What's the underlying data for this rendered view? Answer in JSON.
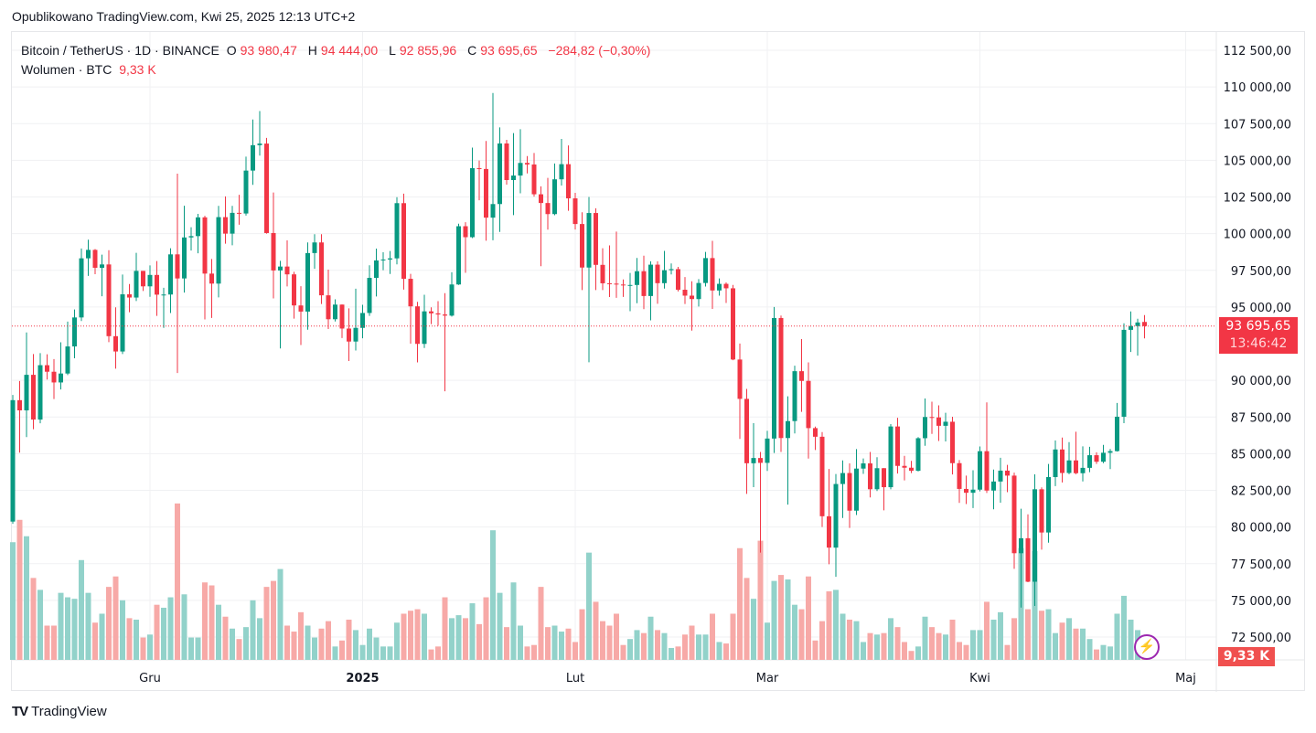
{
  "published": "Opublikowano TradingView.com, Kwi 25, 2025 12:13 UTC+2",
  "legend": {
    "symbol": "Bitcoin / TetherUS · 1D · BINANCE",
    "o_label": "O",
    "o": "93 980,47",
    "h_label": "H",
    "h": "94 444,00",
    "l_label": "L",
    "l": "92 855,96",
    "c_label": "C",
    "c": "93 695,65",
    "change": "−284,82 (−0,30%)",
    "volume_label": "Wolumen · BTC",
    "volume": "9,33 K"
  },
  "price_tag": {
    "price": "93 695,65",
    "countdown": "13:46:42"
  },
  "volume_tag": "9,33 K",
  "logo": {
    "text": "TradingView",
    "mark": "TV"
  },
  "colors": {
    "up": "#089981",
    "down": "#f23645",
    "up_vol": "#92d2ca",
    "down_vol": "#f7a9a7",
    "grid": "#f0f1f3"
  },
  "chart_data": {
    "type": "candlestick",
    "title": "Bitcoin / TetherUS · 1D · BINANCE",
    "ylim": [
      71250,
      113750
    ],
    "y_ticks": [
      {
        "value": 112500,
        "label": "112 500,00"
      },
      {
        "value": 110000,
        "label": "110 000,00"
      },
      {
        "value": 107500,
        "label": "107 500,00"
      },
      {
        "value": 105000,
        "label": "105 000,00"
      },
      {
        "value": 102500,
        "label": "102 500,00"
      },
      {
        "value": 100000,
        "label": "100 000,00"
      },
      {
        "value": 97500,
        "label": "97 500,00"
      },
      {
        "value": 95000,
        "label": "95 000,00"
      },
      {
        "value": 90000,
        "label": "90 000,00"
      },
      {
        "value": 87500,
        "label": "87 500,00"
      },
      {
        "value": 85000,
        "label": "85 000,00"
      },
      {
        "value": 82500,
        "label": "82 500,00"
      },
      {
        "value": 80000,
        "label": "80 000,00"
      },
      {
        "value": 77500,
        "label": "77 500,00"
      },
      {
        "value": 75000,
        "label": "75 000,00"
      },
      {
        "value": 72500,
        "label": "72 500,00"
      }
    ],
    "x_ticks": [
      {
        "day": 20,
        "label": "Gru",
        "bold": false
      },
      {
        "day": 51,
        "label": "2025",
        "bold": true
      },
      {
        "day": 82,
        "label": "Lut",
        "bold": false
      },
      {
        "day": 110,
        "label": "Mar",
        "bold": false
      },
      {
        "day": 141,
        "label": "Kwi",
        "bold": false
      },
      {
        "day": 171,
        "label": "Maj",
        "bold": false
      }
    ],
    "last_price": 93695.65,
    "ohlc": [
      [
        80370,
        89000,
        80216,
        88648
      ],
      [
        88648,
        89956,
        85072,
        87952
      ],
      [
        87952,
        93265,
        86127,
        90375
      ],
      [
        90375,
        91790,
        86668,
        87325
      ],
      [
        87325,
        91850,
        87073,
        91032
      ],
      [
        91032,
        91779,
        90056,
        90586
      ],
      [
        90586,
        91449,
        88723,
        89855
      ],
      [
        89855,
        92594,
        89376,
        90464
      ],
      [
        90464,
        94002,
        90357,
        92310
      ],
      [
        92310,
        94831,
        91500,
        94286
      ],
      [
        94286,
        98988,
        94040,
        98317
      ],
      [
        98317,
        99588,
        97122,
        98892
      ],
      [
        98892,
        98950,
        97232,
        97672
      ],
      [
        97672,
        98564,
        95734,
        97900
      ],
      [
        97900,
        98871,
        92600,
        93010
      ],
      [
        93010,
        94973,
        90791,
        91965
      ],
      [
        91965,
        97208,
        91792,
        95863
      ],
      [
        95863,
        96564,
        94640,
        95643
      ],
      [
        95643,
        98693,
        95407,
        97460
      ],
      [
        97460,
        97463,
        96092,
        96407
      ],
      [
        96407,
        97836,
        95693,
        97185
      ],
      [
        97185,
        98130,
        94395,
        95840
      ],
      [
        95840,
        96305,
        93578,
        95849
      ],
      [
        95849,
        99000,
        94587,
        98587
      ],
      [
        98587,
        104088,
        90500,
        96945
      ],
      [
        96945,
        101898,
        95981,
        99740
      ],
      [
        99740,
        100439,
        98844,
        99831
      ],
      [
        99831,
        101350,
        98657,
        101109
      ],
      [
        101109,
        101215,
        94150,
        97276
      ],
      [
        97276,
        98270,
        94256,
        96593
      ],
      [
        96593,
        101895,
        95658,
        101125
      ],
      [
        101125,
        102540,
        99311,
        100000
      ],
      [
        100000,
        101895,
        99205,
        101417
      ],
      [
        101417,
        102650,
        100609,
        101372
      ],
      [
        101372,
        105250,
        101227,
        104298
      ],
      [
        104298,
        107780,
        103322,
        106029
      ],
      [
        106029,
        108353,
        105321,
        106140
      ],
      [
        106140,
        106524,
        100000,
        100041
      ],
      [
        100041,
        102800,
        95587,
        97490
      ],
      [
        97490,
        98150,
        92175,
        97756
      ],
      [
        97756,
        99540,
        96398,
        97224
      ],
      [
        97224,
        97400,
        94202,
        95104
      ],
      [
        95104,
        96416,
        92403,
        94686
      ],
      [
        94686,
        99404,
        93448,
        98676
      ],
      [
        98676,
        99960,
        97600,
        99400
      ],
      [
        99400,
        99963,
        95199,
        95795
      ],
      [
        95795,
        97544,
        93500,
        94164
      ],
      [
        94164,
        95525,
        94014,
        95163
      ],
      [
        95163,
        95174,
        92881,
        93530
      ],
      [
        93530,
        94903,
        91317,
        92643
      ],
      [
        92643,
        96250,
        92033,
        93576
      ],
      [
        93576,
        95150,
        92869,
        94591
      ],
      [
        94591,
        97839,
        94393,
        96984
      ],
      [
        96984,
        98976,
        95719,
        98174
      ],
      [
        98174,
        98734,
        97509,
        98236
      ],
      [
        98236,
        98813,
        97251,
        98314
      ],
      [
        98314,
        102482,
        97905,
        102078
      ],
      [
        102078,
        102724,
        96181,
        96922
      ],
      [
        96922,
        97258,
        92500,
        95043
      ],
      [
        95043,
        95349,
        91220,
        92484
      ],
      [
        92484,
        95836,
        92206,
        94701
      ],
      [
        94701,
        94979,
        93831,
        94566
      ],
      [
        94566,
        95400,
        93712,
        94488
      ],
      [
        94488,
        95940,
        89256,
        94410
      ],
      [
        94410,
        97371,
        94346,
        96534
      ],
      [
        96534,
        100681,
        96500,
        100505
      ],
      [
        100505,
        100781,
        97332,
        99757
      ],
      [
        99757,
        105865,
        99700,
        104462
      ],
      [
        104462,
        104988,
        102277,
        104408
      ],
      [
        104408,
        106314,
        99518,
        101089
      ],
      [
        101089,
        109588,
        99550,
        102016
      ],
      [
        102016,
        107240,
        100119,
        106147
      ],
      [
        106147,
        106394,
        103339,
        103653
      ],
      [
        103653,
        106850,
        101262,
        103960
      ],
      [
        103960,
        107120,
        102750,
        104819
      ],
      [
        104819,
        105286,
        104106,
        104714
      ],
      [
        104714,
        105500,
        102520,
        102682
      ],
      [
        102682,
        103222,
        97777,
        102087
      ],
      [
        102087,
        103800,
        100272,
        101332
      ],
      [
        101332,
        104782,
        101256,
        103703
      ],
      [
        103703,
        106457,
        103280,
        104735
      ],
      [
        104735,
        106012,
        101560,
        102405
      ],
      [
        102405,
        102783,
        100279,
        100655
      ],
      [
        100655,
        101456,
        96150,
        97688
      ],
      [
        97688,
        102500,
        91231,
        101406
      ],
      [
        101406,
        101732,
        96150,
        97871
      ],
      [
        97871,
        99000,
        96155,
        96615
      ],
      [
        96615,
        99195,
        95676,
        96593
      ],
      [
        96593,
        100137,
        95620,
        96529
      ],
      [
        96529,
        96880,
        95688,
        96482
      ],
      [
        96482,
        97323,
        94713,
        96500
      ],
      [
        96500,
        98345,
        95256,
        97437
      ],
      [
        97437,
        98500,
        94850,
        95747
      ],
      [
        95747,
        98119,
        94088,
        97885
      ],
      [
        97885,
        98115,
        95217,
        96623
      ],
      [
        96623,
        98826,
        96252,
        97508
      ],
      [
        97508,
        97970,
        97223,
        97580
      ],
      [
        97580,
        97732,
        96058,
        96175
      ],
      [
        96175,
        97040,
        95205,
        95773
      ],
      [
        95773,
        96753,
        93388,
        95539
      ],
      [
        95539,
        96899,
        95029,
        96635
      ],
      [
        96635,
        98756,
        96397,
        98333
      ],
      [
        98333,
        99508,
        94871,
        96125
      ],
      [
        96125,
        96950,
        95770,
        96577
      ],
      [
        96577,
        96672,
        95270,
        96273
      ],
      [
        96273,
        96503,
        91371,
        91418
      ],
      [
        91418,
        92511,
        86008,
        88736
      ],
      [
        88736,
        89414,
        82256,
        84347
      ],
      [
        84347,
        87078,
        82716,
        84704
      ],
      [
        84704,
        85120,
        78258,
        84373
      ],
      [
        84373,
        86560,
        83823,
        86031
      ],
      [
        86031,
        95000,
        85050,
        94248
      ],
      [
        94248,
        94416,
        85117,
        86065
      ],
      [
        86065,
        88912,
        81529,
        87222
      ],
      [
        87222,
        90998,
        86379,
        90623
      ],
      [
        90623,
        92810,
        87853,
        89961
      ],
      [
        89961,
        91224,
        84667,
        86742
      ],
      [
        86742,
        86847,
        85247,
        86154
      ],
      [
        86154,
        86471,
        80000,
        80734
      ],
      [
        80734,
        83955,
        77459,
        78595
      ],
      [
        78595,
        83617,
        76606,
        82932
      ],
      [
        82932,
        84539,
        80614,
        83680
      ],
      [
        83680,
        84336,
        79939,
        81115
      ],
      [
        81115,
        85309,
        80818,
        83983
      ],
      [
        83983,
        84676,
        83618,
        84338
      ],
      [
        84338,
        85117,
        82017,
        82574
      ],
      [
        82574,
        84756,
        82456,
        84010
      ],
      [
        84010,
        84021,
        81134,
        82715
      ],
      [
        82715,
        87021,
        82569,
        86854
      ],
      [
        86854,
        87443,
        83647,
        84167
      ],
      [
        84167,
        84850,
        83175,
        84043
      ],
      [
        84043,
        84513,
        83674,
        83832
      ],
      [
        83832,
        86129,
        83794,
        86054
      ],
      [
        86054,
        88765,
        85541,
        87498
      ],
      [
        87498,
        88542,
        86346,
        87471
      ],
      [
        87471,
        88292,
        85862,
        86900
      ],
      [
        86900,
        87786,
        85837,
        87177
      ],
      [
        87177,
        87515,
        83585,
        84353
      ],
      [
        84353,
        84567,
        81644,
        82597
      ],
      [
        82597,
        83505,
        81565,
        82334
      ],
      [
        82334,
        83870,
        81293,
        82548
      ],
      [
        82548,
        85487,
        82429,
        85169
      ],
      [
        85169,
        88500,
        82320,
        82485
      ],
      [
        82485,
        83919,
        81211,
        83102
      ],
      [
        83102,
        84720,
        81659,
        83843
      ],
      [
        83843,
        84234,
        82373,
        83504
      ],
      [
        83504,
        83704,
        77153,
        78214
      ],
      [
        78214,
        81243,
        74508,
        79235
      ],
      [
        79235,
        80867,
        76239,
        76271
      ],
      [
        76271,
        83588,
        74620,
        82573
      ],
      [
        82573,
        82700,
        78456,
        79626
      ],
      [
        79626,
        84300,
        78936,
        83404
      ],
      [
        83404,
        85905,
        82792,
        85287
      ],
      [
        85287,
        86100,
        83034,
        83684
      ],
      [
        83684,
        85785,
        83600,
        84542
      ],
      [
        84542,
        86496,
        83600,
        83668
      ],
      [
        83668,
        85500,
        83111,
        84033
      ],
      [
        84033,
        85470,
        83736,
        84895
      ],
      [
        84895,
        85095,
        84298,
        84450
      ],
      [
        84450,
        85597,
        84353,
        85063
      ],
      [
        85063,
        85320,
        83949,
        85174
      ],
      [
        85174,
        88460,
        85143,
        87518
      ],
      [
        87518,
        93888,
        87076,
        93441
      ],
      [
        93441,
        94696,
        91935,
        93699
      ],
      [
        93699,
        94200,
        91683,
        93944
      ],
      [
        93980.47,
        94444,
        92855.96,
        93695.65
      ]
    ],
    "volume_k": [
      79,
      94,
      83,
      55,
      47,
      23,
      23,
      45,
      42,
      41,
      67,
      45,
      25,
      31,
      49,
      56,
      40,
      28,
      27,
      15,
      17,
      37,
      35,
      42,
      105,
      44,
      15,
      15,
      52,
      50,
      37,
      29,
      21,
      14,
      22,
      40,
      28,
      49,
      53,
      61,
      23,
      19,
      32,
      23,
      15,
      21,
      26,
      9,
      13,
      27,
      20,
      10,
      21,
      15,
      9,
      9,
      25,
      31,
      33,
      34,
      31,
      7,
      9,
      42,
      28,
      30,
      28,
      38,
      24,
      42,
      87,
      45,
      22,
      52,
      23,
      9,
      10,
      49,
      22,
      23,
      19,
      21,
      12,
      34,
      72,
      39,
      26,
      23,
      31,
      10,
      14,
      20,
      18,
      29,
      20,
      18,
      8,
      9,
      17,
      23,
      17,
      17,
      31,
      12,
      11,
      31,
      75,
      55,
      41,
      80,
      25,
      53,
      57,
      54,
      37,
      34,
      56,
      13,
      26,
      46,
      47,
      31,
      27,
      26,
      12,
      18,
      17,
      18,
      28,
      22,
      12,
      6,
      9,
      29,
      22,
      18,
      17,
      27,
      12,
      10,
      20,
      20,
      39,
      27,
      32,
      10,
      28,
      75,
      34,
      73,
      33,
      34,
      18,
      25,
      28,
      21,
      21,
      14,
      7,
      10,
      9,
      31,
      43,
      27,
      20,
      9.33
    ]
  }
}
